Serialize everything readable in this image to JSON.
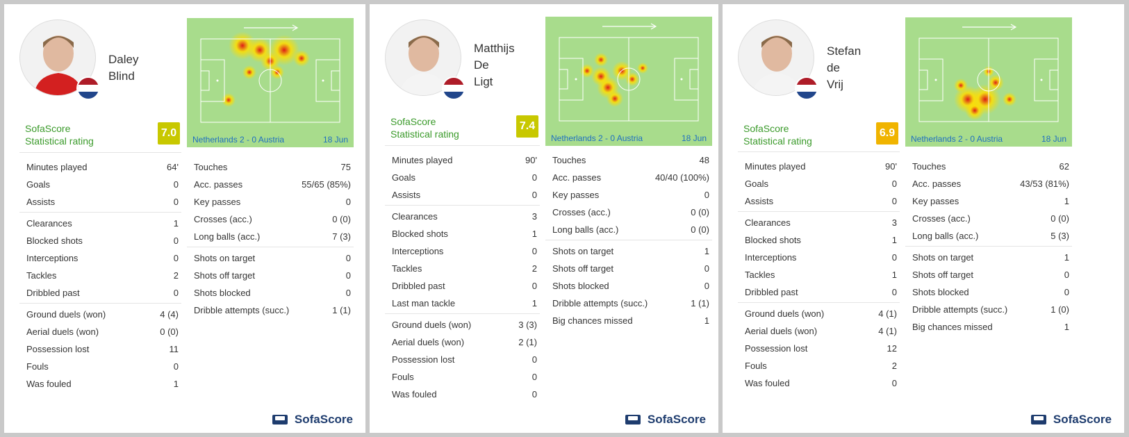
{
  "cards": [
    {
      "player": {
        "first": "Daley",
        "last": "Blind",
        "extra": ""
      },
      "rating_label_1": "SofaScore",
      "rating_label_2": "Statistical rating",
      "rating": "7.0",
      "rating_color": "#c8c800",
      "heatmap": {
        "match": "Netherlands 2 - 0 Austria",
        "date": "18 Jun"
      },
      "left_groups": [
        [
          [
            "Minutes played",
            "64'"
          ],
          [
            "Goals",
            "0"
          ],
          [
            "Assists",
            "0"
          ]
        ],
        [
          [
            "Clearances",
            "1"
          ],
          [
            "Blocked shots",
            "0"
          ],
          [
            "Interceptions",
            "0"
          ],
          [
            "Tackles",
            "2"
          ],
          [
            "Dribbled past",
            "0"
          ]
        ],
        [
          [
            "Ground duels (won)",
            "4 (4)"
          ],
          [
            "Aerial duels (won)",
            "0 (0)"
          ],
          [
            "Possession lost",
            "11"
          ],
          [
            "Fouls",
            "0"
          ],
          [
            "Was fouled",
            "1"
          ]
        ]
      ],
      "right_groups": [
        [
          [
            "Touches",
            "75"
          ],
          [
            "Acc. passes",
            "55/65 (85%)"
          ],
          [
            "Key passes",
            "0"
          ],
          [
            "Crosses (acc.)",
            "0 (0)"
          ],
          [
            "Long balls (acc.)",
            "7 (3)"
          ]
        ],
        [
          [
            "Shots on target",
            "0"
          ],
          [
            "Shots off target",
            "0"
          ],
          [
            "Shots blocked",
            "0"
          ],
          [
            "Dribble attempts (succ.)",
            "1 (1)"
          ]
        ]
      ]
    },
    {
      "player": {
        "first": "Matthijs",
        "last": "De",
        "extra": "Ligt"
      },
      "rating_label_1": "SofaScore",
      "rating_label_2": "Statistical rating",
      "rating": "7.4",
      "rating_color": "#c8c800",
      "heatmap": {
        "match": "Netherlands 2 - 0 Austria",
        "date": "18 Jun"
      },
      "left_groups": [
        [
          [
            "Minutes played",
            "90'"
          ],
          [
            "Goals",
            "0"
          ],
          [
            "Assists",
            "0"
          ]
        ],
        [
          [
            "Clearances",
            "3"
          ],
          [
            "Blocked shots",
            "1"
          ],
          [
            "Interceptions",
            "0"
          ],
          [
            "Tackles",
            "2"
          ],
          [
            "Dribbled past",
            "0"
          ],
          [
            "Last man tackle",
            "1"
          ]
        ],
        [
          [
            "Ground duels (won)",
            "3 (3)"
          ],
          [
            "Aerial duels (won)",
            "2 (1)"
          ],
          [
            "Possession lost",
            "0"
          ],
          [
            "Fouls",
            "0"
          ],
          [
            "Was fouled",
            "0"
          ]
        ]
      ],
      "right_groups": [
        [
          [
            "Touches",
            "48"
          ],
          [
            "Acc. passes",
            "40/40 (100%)"
          ],
          [
            "Key passes",
            "0"
          ],
          [
            "Crosses (acc.)",
            "0 (0)"
          ],
          [
            "Long balls (acc.)",
            "0 (0)"
          ]
        ],
        [
          [
            "Shots on target",
            "1"
          ],
          [
            "Shots off target",
            "0"
          ],
          [
            "Shots blocked",
            "0"
          ],
          [
            "Dribble attempts (succ.)",
            "1 (1)"
          ],
          [
            "Big chances missed",
            "1"
          ]
        ]
      ]
    },
    {
      "player": {
        "first": "Stefan",
        "last": "de",
        "extra": "Vrij"
      },
      "rating_label_1": "SofaScore",
      "rating_label_2": "Statistical rating",
      "rating": "6.9",
      "rating_color": "#f0b400",
      "heatmap": {
        "match": "Netherlands 2 - 0 Austria",
        "date": "18 Jun"
      },
      "left_groups": [
        [
          [
            "Minutes played",
            "90'"
          ],
          [
            "Goals",
            "0"
          ],
          [
            "Assists",
            "0"
          ]
        ],
        [
          [
            "Clearances",
            "3"
          ],
          [
            "Blocked shots",
            "1"
          ],
          [
            "Interceptions",
            "0"
          ],
          [
            "Tackles",
            "1"
          ],
          [
            "Dribbled past",
            "0"
          ]
        ],
        [
          [
            "Ground duels (won)",
            "4 (1)"
          ],
          [
            "Aerial duels (won)",
            "4 (1)"
          ],
          [
            "Possession lost",
            "12"
          ],
          [
            "Fouls",
            "2"
          ],
          [
            "Was fouled",
            "0"
          ]
        ]
      ],
      "right_groups": [
        [
          [
            "Touches",
            "62"
          ],
          [
            "Acc. passes",
            "43/53 (81%)"
          ],
          [
            "Key passes",
            "1"
          ],
          [
            "Crosses (acc.)",
            "0 (0)"
          ],
          [
            "Long balls (acc.)",
            "5 (3)"
          ]
        ],
        [
          [
            "Shots on target",
            "1"
          ],
          [
            "Shots off target",
            "0"
          ],
          [
            "Shots blocked",
            "0"
          ],
          [
            "Dribble attempts (succ.)",
            "1 (0)"
          ],
          [
            "Big chances missed",
            "1"
          ]
        ]
      ]
    }
  ],
  "brand": "SofaScore",
  "flag_colors": [
    "#ae1c28",
    "#ffffff",
    "#21468b"
  ]
}
